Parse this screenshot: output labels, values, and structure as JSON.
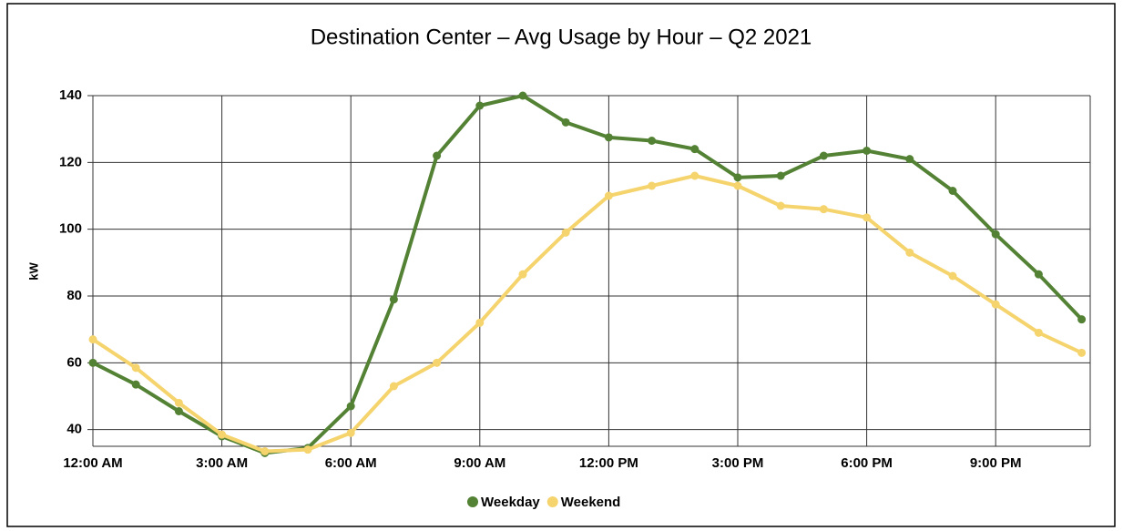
{
  "chart_data": {
    "type": "line",
    "title": "Destination Center – Avg Usage by Hour – Q2 2021",
    "y_label": "kW",
    "categories": [
      "12:00 AM",
      null,
      null,
      "3:00 AM",
      null,
      null,
      "6:00 AM",
      null,
      null,
      "9:00 AM",
      null,
      null,
      "12:00 PM",
      null,
      null,
      "3:00 PM",
      null,
      null,
      "6:00 PM",
      null,
      null,
      "9:00 PM",
      null,
      null
    ],
    "series": [
      {
        "name": "Weekday",
        "color": "#548235",
        "values": [
          60,
          53.5,
          45.5,
          38,
          33,
          34.5,
          47,
          79,
          122,
          137,
          140,
          132,
          127.5,
          126.5,
          124,
          115.5,
          116,
          122,
          123.5,
          121,
          111.5,
          98.5,
          86.5,
          73
        ]
      },
      {
        "name": "Weekend",
        "color": "#f5d46e",
        "values": [
          67,
          58.5,
          48,
          38.5,
          33.5,
          34,
          39,
          53,
          60,
          72,
          86.5,
          99,
          110,
          113,
          116,
          113,
          107,
          106,
          103.5,
          93,
          86,
          77.5,
          69,
          63
        ]
      }
    ],
    "ylim": [
      35,
      140
    ],
    "yticks": [
      40,
      60,
      80,
      100,
      120,
      140
    ],
    "grid": true,
    "legend": "bottom"
  }
}
